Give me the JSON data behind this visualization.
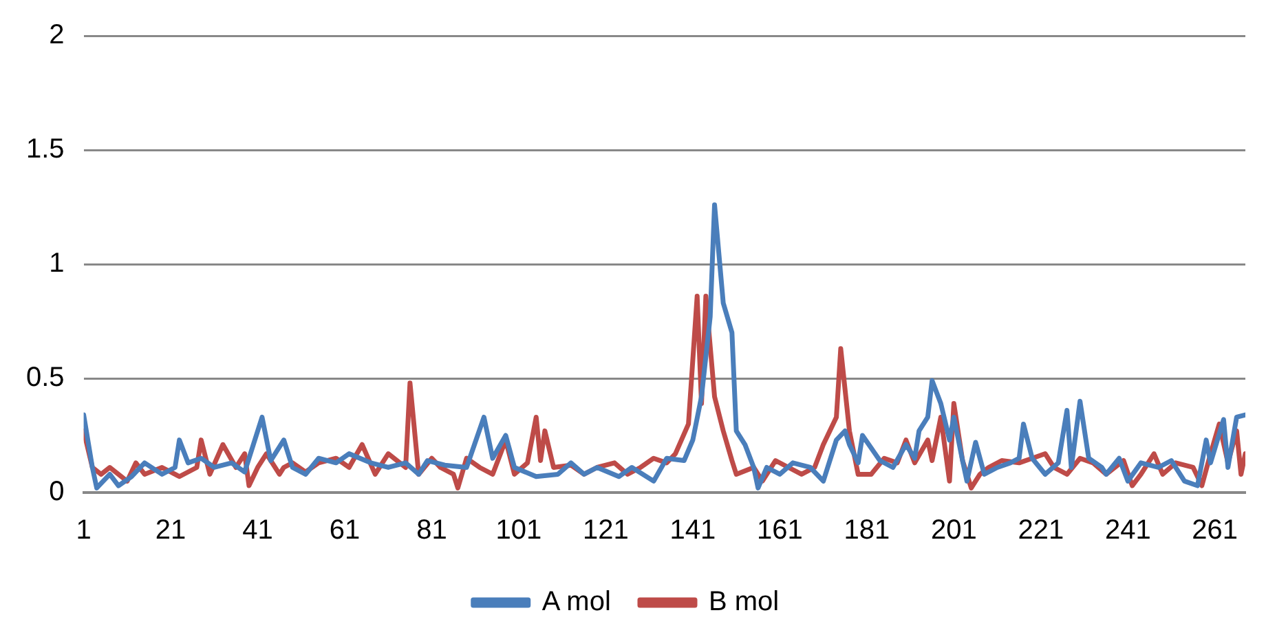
{
  "chart_data": {
    "type": "line",
    "marker": "none",
    "grid": "y",
    "legend": "bottom",
    "xlim": [
      1,
      268
    ],
    "xticks": [
      1,
      21,
      41,
      61,
      81,
      101,
      121,
      141,
      161,
      181,
      201,
      221,
      241,
      261
    ],
    "ylim": [
      0,
      2
    ],
    "yticks": [
      0,
      0.5,
      1,
      1.5,
      2
    ],
    "series": [
      {
        "name": "A mol",
        "color": "#4a7ebb",
        "x": [
          1,
          3,
          4,
          7,
          9,
          12,
          15,
          19,
          22,
          23,
          25,
          28,
          31,
          35,
          38,
          42,
          44,
          47,
          49,
          52,
          55,
          59,
          62,
          67,
          71,
          75,
          78,
          80,
          84,
          89,
          93,
          95,
          98,
          100,
          105,
          110,
          113,
          116,
          119,
          124,
          127,
          132,
          135,
          139,
          141,
          143,
          145,
          146,
          148,
          150,
          151,
          153,
          155,
          156,
          158,
          161,
          164,
          168,
          171,
          174,
          176,
          177,
          179,
          180,
          184,
          187,
          190,
          192,
          193,
          195,
          196,
          198,
          200,
          201,
          203,
          204,
          206,
          208,
          211,
          214,
          216,
          217,
          219,
          222,
          225,
          227,
          228,
          230,
          232,
          235,
          236,
          239,
          241,
          244,
          248,
          251,
          254,
          257,
          259,
          260,
          263,
          264,
          266,
          268
        ],
        "values": [
          0.34,
          0.11,
          0.02,
          0.08,
          0.03,
          0.07,
          0.13,
          0.08,
          0.11,
          0.23,
          0.13,
          0.15,
          0.11,
          0.13,
          0.09,
          0.33,
          0.14,
          0.23,
          0.11,
          0.08,
          0.15,
          0.13,
          0.17,
          0.13,
          0.11,
          0.13,
          0.08,
          0.14,
          0.12,
          0.11,
          0.33,
          0.15,
          0.25,
          0.11,
          0.07,
          0.08,
          0.13,
          0.08,
          0.11,
          0.07,
          0.11,
          0.05,
          0.15,
          0.14,
          0.23,
          0.42,
          0.77,
          1.26,
          0.83,
          0.7,
          0.27,
          0.21,
          0.11,
          0.02,
          0.11,
          0.08,
          0.13,
          0.11,
          0.05,
          0.23,
          0.27,
          0.21,
          0.13,
          0.25,
          0.14,
          0.11,
          0.21,
          0.15,
          0.27,
          0.33,
          0.49,
          0.39,
          0.23,
          0.33,
          0.14,
          0.05,
          0.22,
          0.08,
          0.11,
          0.13,
          0.15,
          0.3,
          0.15,
          0.08,
          0.13,
          0.36,
          0.11,
          0.4,
          0.15,
          0.11,
          0.08,
          0.15,
          0.05,
          0.13,
          0.11,
          0.14,
          0.05,
          0.03,
          0.23,
          0.13,
          0.32,
          0.11,
          0.33,
          0.34
        ]
      },
      {
        "name": "B mol",
        "color": "#be4b48",
        "x": [
          1,
          3,
          5,
          7,
          11,
          13,
          15,
          19,
          22,
          23,
          27,
          28,
          30,
          33,
          36,
          38,
          39,
          41,
          43,
          46,
          47,
          49,
          52,
          55,
          59,
          62,
          65,
          68,
          71,
          75,
          76,
          78,
          81,
          83,
          86,
          87,
          89,
          92,
          95,
          98,
          100,
          103,
          105,
          106,
          107,
          109,
          113,
          116,
          119,
          123,
          126,
          129,
          132,
          135,
          137,
          140,
          142,
          143,
          144,
          146,
          148,
          150,
          151,
          155,
          157,
          160,
          163,
          166,
          169,
          171,
          172,
          174,
          175,
          177,
          179,
          182,
          185,
          188,
          190,
          192,
          195,
          196,
          198,
          200,
          201,
          203,
          205,
          207,
          209,
          212,
          216,
          219,
          222,
          224,
          227,
          230,
          233,
          236,
          240,
          242,
          244,
          247,
          249,
          252,
          256,
          258,
          260,
          262,
          264,
          266,
          267,
          268
        ],
        "values": [
          0.27,
          0.11,
          0.08,
          0.11,
          0.05,
          0.13,
          0.08,
          0.11,
          0.08,
          0.07,
          0.11,
          0.23,
          0.08,
          0.21,
          0.11,
          0.17,
          0.03,
          0.11,
          0.17,
          0.08,
          0.11,
          0.13,
          0.09,
          0.13,
          0.15,
          0.11,
          0.21,
          0.08,
          0.17,
          0.11,
          0.48,
          0.08,
          0.15,
          0.11,
          0.08,
          0.02,
          0.15,
          0.11,
          0.08,
          0.23,
          0.08,
          0.13,
          0.33,
          0.14,
          0.27,
          0.11,
          0.12,
          0.08,
          0.11,
          0.13,
          0.08,
          0.11,
          0.15,
          0.13,
          0.17,
          0.3,
          0.86,
          0.39,
          0.86,
          0.42,
          0.27,
          0.14,
          0.08,
          0.11,
          0.05,
          0.14,
          0.11,
          0.08,
          0.11,
          0.21,
          0.25,
          0.33,
          0.63,
          0.27,
          0.08,
          0.08,
          0.15,
          0.13,
          0.23,
          0.13,
          0.23,
          0.14,
          0.33,
          0.05,
          0.39,
          0.14,
          0.02,
          0.08,
          0.11,
          0.14,
          0.13,
          0.15,
          0.17,
          0.11,
          0.08,
          0.15,
          0.13,
          0.08,
          0.14,
          0.03,
          0.08,
          0.17,
          0.08,
          0.13,
          0.11,
          0.03,
          0.17,
          0.3,
          0.13,
          0.27,
          0.08,
          0.17
        ]
      }
    ]
  }
}
